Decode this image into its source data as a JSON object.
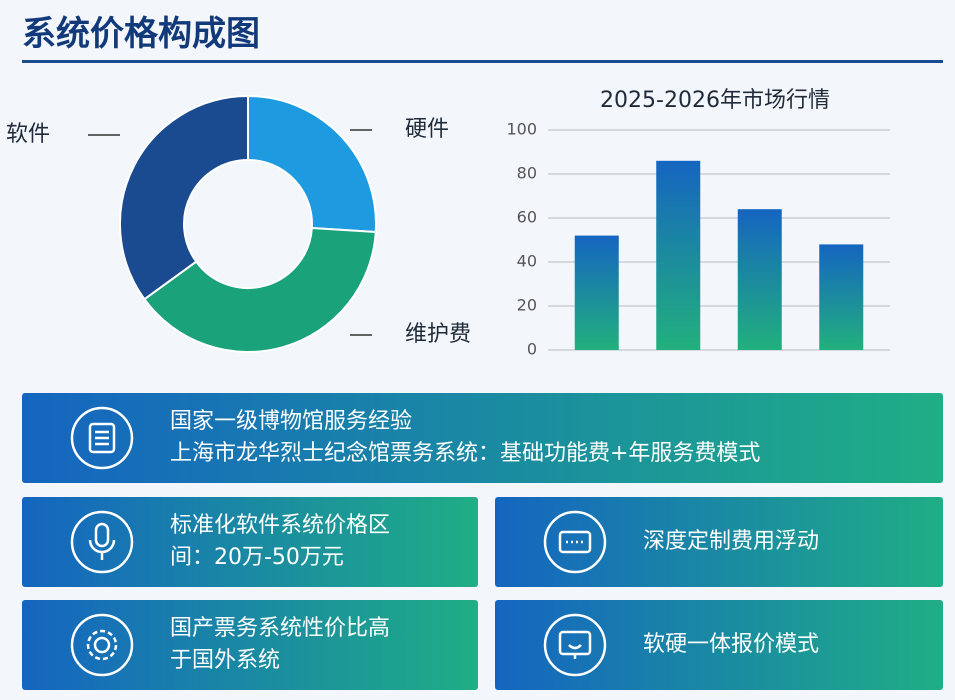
{
  "header": {
    "title": "系统价格构成图"
  },
  "chart_data": [
    {
      "type": "donut",
      "categories": [
        "硬件",
        "维护费",
        "软件"
      ],
      "values": [
        26,
        39,
        35
      ],
      "colors": [
        "#1e9be0",
        "#1aa37a",
        "#1a4a8f"
      ]
    },
    {
      "type": "bar",
      "title": "2025-2026年市场行情",
      "categories": [
        null,
        null,
        null,
        null
      ],
      "values": [
        52,
        86,
        64,
        48
      ],
      "color": "#1565c0",
      "gradient_end": "#22b07d",
      "ylim": [
        0,
        100
      ],
      "yticks": [
        0,
        20,
        40,
        60,
        80,
        100
      ],
      "grid": true
    }
  ],
  "cards": [
    {
      "lines": [
        "国家一级博物馆服务经验",
        "上海市龙华烈士纪念馆票务系统：基础功能费+年服务费模式"
      ]
    },
    {
      "lines": [
        "标准化软件系统价格区",
        "间：20万-50万元"
      ]
    },
    {
      "lines": [
        "深度定制费用浮动"
      ]
    },
    {
      "lines": [
        "国产票务系统性价比高",
        "于国外系统"
      ]
    },
    {
      "lines": [
        "软硬一体报价模式"
      ]
    }
  ]
}
